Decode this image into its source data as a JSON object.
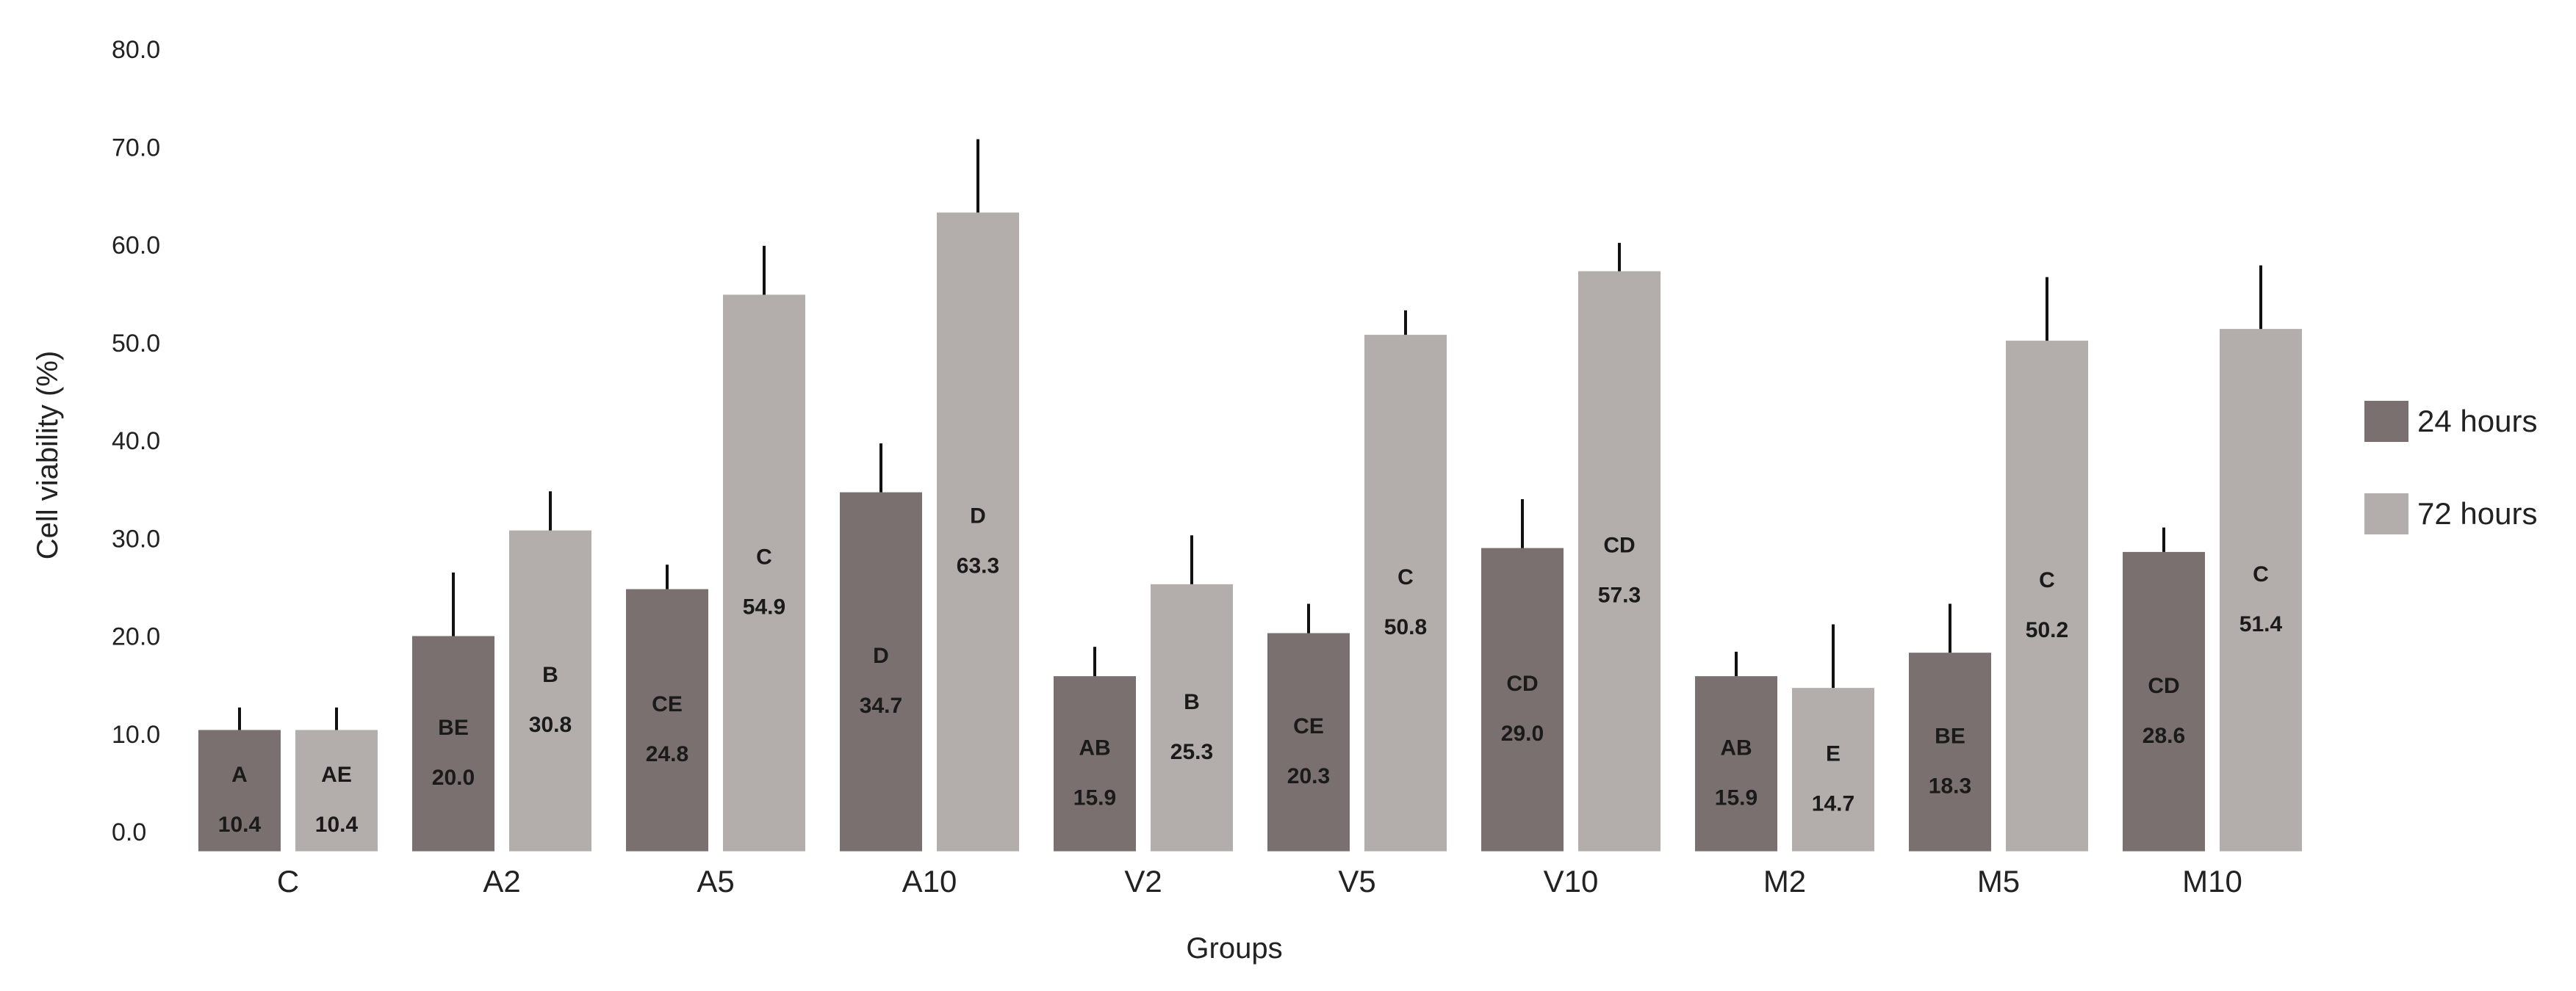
{
  "chart_data": {
    "type": "bar",
    "title": "",
    "xlabel": "Groups",
    "ylabel": "Cell viability (%)",
    "ylim": [
      0,
      80
    ],
    "yticks": [
      "0.0",
      "10.0",
      "20.0",
      "30.0",
      "40.0",
      "50.0",
      "60.0",
      "70.0",
      "80.0"
    ],
    "categories": [
      "C",
      "A2",
      "A5",
      "A10",
      "V2",
      "V5",
      "V10",
      "M2",
      "M5",
      "M10"
    ],
    "legend_position": "right",
    "series": [
      {
        "name": "24 hours",
        "color": "#7b7070",
        "values": [
          10.4,
          20.0,
          24.8,
          34.7,
          15.9,
          20.3,
          29.0,
          15.9,
          18.3,
          28.6
        ],
        "value_labels": [
          "10.4",
          "20.0",
          "24.8",
          "34.7",
          "15.9",
          "20.3",
          "29.0",
          "15.9",
          "18.3",
          "28.6"
        ],
        "letters": [
          "A",
          "BE",
          "CE",
          "D",
          "AB",
          "CE",
          "CD",
          "AB",
          "BE",
          "CD"
        ],
        "errors": [
          2.3,
          6.5,
          2.5,
          5.0,
          3.0,
          3.0,
          5.0,
          2.5,
          5.0,
          2.5
        ]
      },
      {
        "name": "72 hours",
        "color": "#b3aeab",
        "values": [
          10.4,
          30.8,
          54.9,
          63.3,
          25.3,
          50.8,
          57.3,
          14.7,
          50.2,
          51.4
        ],
        "value_labels": [
          "10.4",
          "30.8",
          "54.9",
          "63.3",
          "25.3",
          "50.8",
          "57.3",
          "14.7",
          "50.2",
          "51.4"
        ],
        "letters": [
          "AE",
          "B",
          "C",
          "D",
          "B",
          "C",
          "CD",
          "E",
          "C",
          "C"
        ],
        "errors": [
          2.3,
          4.0,
          5.0,
          7.5,
          5.0,
          2.5,
          2.9,
          6.5,
          6.5,
          6.5
        ]
      }
    ]
  }
}
